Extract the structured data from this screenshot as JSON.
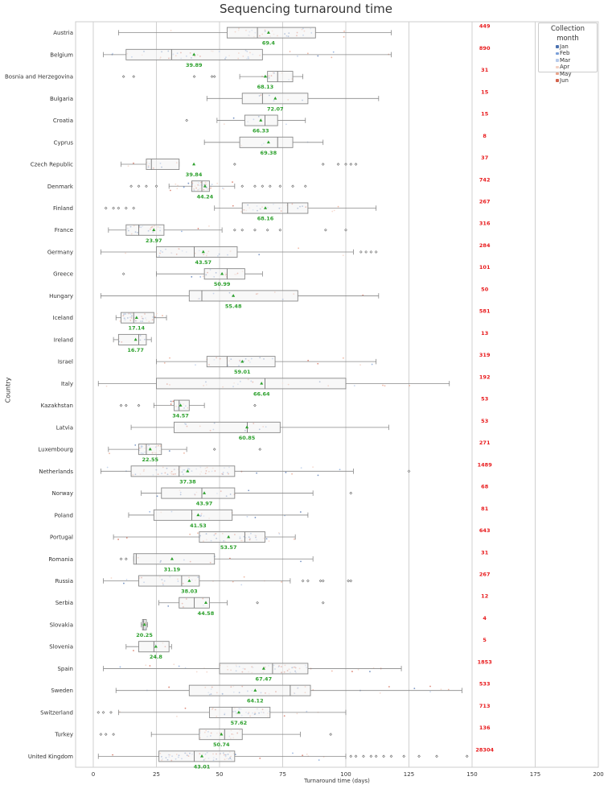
{
  "chart_data": {
    "type": "box",
    "title": "Sequencing turnaround time",
    "xlabel": "Turnaround time (days)",
    "ylabel": "Country",
    "xlim": [
      -7,
      200
    ],
    "xticks": [
      0,
      25,
      50,
      75,
      100,
      125,
      150,
      175,
      200
    ],
    "grid": true,
    "legend": {
      "title": "Collection month",
      "placement": "top-right",
      "entries": [
        {
          "label": "Jan",
          "color": "#4c72b0"
        },
        {
          "label": "Feb",
          "color": "#7a9fd8"
        },
        {
          "label": "Mar",
          "color": "#b6c9ea"
        },
        {
          "label": "Apr",
          "color": "#f3d0c2"
        },
        {
          "label": "May",
          "color": "#e9a38a"
        },
        {
          "label": "Jun",
          "color": "#d2624c"
        }
      ]
    },
    "mean_color": "#2ca02c",
    "count_color": "#e8191b",
    "countries": [
      {
        "name": "Austria",
        "q1": 53,
        "median": 65,
        "q3": 88,
        "whisker_low": 10,
        "whisker_high": 118,
        "mean": 69.4,
        "mean_label": "69.4",
        "count": "449",
        "outliers": []
      },
      {
        "name": "Belgium",
        "q1": 13,
        "median": 31,
        "q3": 67,
        "whisker_low": 4,
        "whisker_high": 118,
        "mean": 39.89,
        "mean_label": "39.89",
        "count": "890",
        "outliers": []
      },
      {
        "name": "Bosnia and Herzegovina",
        "q1": 69,
        "median": 73,
        "q3": 79,
        "whisker_low": 58,
        "whisker_high": 83,
        "mean": 68.13,
        "mean_label": "68.13",
        "count": "31",
        "outliers": [
          12,
          16,
          40,
          47,
          48
        ]
      },
      {
        "name": "Bulgaria",
        "q1": 59,
        "median": 67,
        "q3": 85,
        "whisker_low": 45,
        "whisker_high": 113,
        "mean": 72.07,
        "mean_label": "72.07",
        "count": "15",
        "outliers": []
      },
      {
        "name": "Croatia",
        "q1": 60,
        "median": 68,
        "q3": 73,
        "whisker_low": 49,
        "whisker_high": 84,
        "mean": 66.33,
        "mean_label": "66.33",
        "count": "15",
        "outliers": [
          37
        ]
      },
      {
        "name": "Cyprus",
        "q1": 58,
        "median": 73,
        "q3": 79,
        "whisker_low": 44,
        "whisker_high": 91,
        "mean": 69.38,
        "mean_label": "69.38",
        "count": "8",
        "outliers": []
      },
      {
        "name": "Czech Republic",
        "q1": 21,
        "median": 23,
        "q3": 34,
        "whisker_low": 11,
        "whisker_high": 34,
        "mean": 39.84,
        "mean_label": "39.84",
        "count": "37",
        "outliers": [
          56,
          91,
          97,
          100,
          102,
          104
        ]
      },
      {
        "name": "Denmark",
        "q1": 39,
        "median": 43,
        "q3": 46,
        "whisker_low": 30,
        "whisker_high": 56,
        "mean": 44.24,
        "mean_label": "44.24",
        "count": "742",
        "outliers": [
          15,
          18,
          21,
          25,
          59,
          64,
          67,
          70,
          74,
          79,
          84
        ]
      },
      {
        "name": "Finland",
        "q1": 59,
        "median": 77,
        "q3": 85,
        "whisker_low": 48,
        "whisker_high": 112,
        "mean": 68.16,
        "mean_label": "68.16",
        "count": "267",
        "outliers": [
          5,
          8,
          10,
          13,
          16
        ]
      },
      {
        "name": "France",
        "q1": 13,
        "median": 18,
        "q3": 28,
        "whisker_low": 6,
        "whisker_high": 51,
        "mean": 23.97,
        "mean_label": "23.97",
        "count": "316",
        "outliers": [
          56,
          59,
          64,
          69,
          74,
          92,
          100
        ]
      },
      {
        "name": "Germany",
        "q1": 25,
        "median": 40,
        "q3": 57,
        "whisker_low": 3,
        "whisker_high": 103,
        "mean": 43.57,
        "mean_label": "43.57",
        "count": "284",
        "outliers": [
          106,
          108,
          110,
          112
        ]
      },
      {
        "name": "Greece",
        "q1": 44,
        "median": 53,
        "q3": 60,
        "whisker_low": 25,
        "whisker_high": 67,
        "mean": 50.99,
        "mean_label": "50.99",
        "count": "101",
        "outliers": [
          12
        ]
      },
      {
        "name": "Hungary",
        "q1": 38,
        "median": 43,
        "q3": 81,
        "whisker_low": 3,
        "whisker_high": 113,
        "mean": 55.48,
        "mean_label": "55.48",
        "count": "50",
        "outliers": []
      },
      {
        "name": "Iceland",
        "q1": 11,
        "median": 16,
        "q3": 24,
        "whisker_low": 9,
        "whisker_high": 29,
        "mean": 17.14,
        "mean_label": "17.14",
        "count": "581",
        "outliers": []
      },
      {
        "name": "Ireland",
        "q1": 10,
        "median": 18,
        "q3": 21,
        "whisker_low": 8,
        "whisker_high": 23,
        "mean": 16.77,
        "mean_label": "16.77",
        "count": "13",
        "outliers": []
      },
      {
        "name": "Israel",
        "q1": 45,
        "median": 53,
        "q3": 72,
        "whisker_low": 25,
        "whisker_high": 112,
        "mean": 59.01,
        "mean_label": "59.01",
        "count": "319",
        "outliers": []
      },
      {
        "name": "Italy",
        "q1": 25,
        "median": 68,
        "q3": 100,
        "whisker_low": 2,
        "whisker_high": 141,
        "mean": 66.64,
        "mean_label": "66.64",
        "count": "192",
        "outliers": []
      },
      {
        "name": "Kazakhstan",
        "q1": 32,
        "median": 34,
        "q3": 38,
        "whisker_low": 24,
        "whisker_high": 44,
        "mean": 34.57,
        "mean_label": "34.57",
        "count": "53",
        "outliers": [
          11,
          13,
          18,
          64
        ]
      },
      {
        "name": "Latvia",
        "q1": 32,
        "median": 61,
        "q3": 74,
        "whisker_low": 15,
        "whisker_high": 117,
        "mean": 60.85,
        "mean_label": "60.85",
        "count": "53",
        "outliers": []
      },
      {
        "name": "Luxembourg",
        "q1": 18,
        "median": 21,
        "q3": 27,
        "whisker_low": 6,
        "whisker_high": 37,
        "mean": 22.55,
        "mean_label": "22.55",
        "count": "271",
        "outliers": [
          48,
          66
        ]
      },
      {
        "name": "Netherlands",
        "q1": 15,
        "median": 34,
        "q3": 56,
        "whisker_low": 3,
        "whisker_high": 103,
        "mean": 37.38,
        "mean_label": "37.38",
        "count": "1489",
        "outliers": [
          125
        ]
      },
      {
        "name": "Norway",
        "q1": 27,
        "median": 43,
        "q3": 56,
        "whisker_low": 19,
        "whisker_high": 87,
        "mean": 43.97,
        "mean_label": "43.97",
        "count": "68",
        "outliers": [
          102
        ]
      },
      {
        "name": "Poland",
        "q1": 24,
        "median": 39,
        "q3": 55,
        "whisker_low": 14,
        "whisker_high": 85,
        "mean": 41.53,
        "mean_label": "41.53",
        "count": "81",
        "outliers": []
      },
      {
        "name": "Portugal",
        "q1": 42,
        "median": 60,
        "q3": 68,
        "whisker_low": 8,
        "whisker_high": 80,
        "mean": 53.57,
        "mean_label": "53.57",
        "count": "643",
        "outliers": []
      },
      {
        "name": "Romania",
        "q1": 16,
        "median": 17,
        "q3": 48,
        "whisker_low": 16,
        "whisker_high": 87,
        "mean": 31.19,
        "mean_label": "31.19",
        "count": "31",
        "outliers": [
          11,
          13
        ]
      },
      {
        "name": "Russia",
        "q1": 18,
        "median": 35,
        "q3": 42,
        "whisker_low": 4,
        "whisker_high": 78,
        "mean": 38.03,
        "mean_label": "38.03",
        "count": "267",
        "outliers": [
          83,
          85,
          90,
          91,
          101,
          102
        ]
      },
      {
        "name": "Serbia",
        "q1": 34,
        "median": 40,
        "q3": 46,
        "whisker_low": 26,
        "whisker_high": 53,
        "mean": 44.58,
        "mean_label": "44.58",
        "count": "12",
        "outliers": [
          65,
          91
        ]
      },
      {
        "name": "Slovakia",
        "q1": 19.5,
        "median": 20,
        "q3": 21,
        "whisker_low": 19,
        "whisker_high": 21.5,
        "mean": 20.25,
        "mean_label": "20.25",
        "count": "4",
        "outliers": []
      },
      {
        "name": "Slovenia",
        "q1": 18,
        "median": 24,
        "q3": 30,
        "whisker_low": 13,
        "whisker_high": 31,
        "mean": 24.8,
        "mean_label": "24.8",
        "count": "5",
        "outliers": []
      },
      {
        "name": "Spain",
        "q1": 50,
        "median": 71,
        "q3": 85,
        "whisker_low": 4,
        "whisker_high": 122,
        "mean": 67.47,
        "mean_label": "67.47",
        "count": "1853",
        "outliers": []
      },
      {
        "name": "Sweden",
        "q1": 38,
        "median": 78,
        "q3": 86,
        "whisker_low": 9,
        "whisker_high": 146,
        "mean": 64.12,
        "mean_label": "64.12",
        "count": "533",
        "outliers": []
      },
      {
        "name": "Switzerland",
        "q1": 46,
        "median": 55,
        "q3": 70,
        "whisker_low": 10,
        "whisker_high": 100,
        "mean": 57.62,
        "mean_label": "57.62",
        "count": "713",
        "outliers": [
          2,
          4,
          7
        ]
      },
      {
        "name": "Turkey",
        "q1": 42,
        "median": 52,
        "q3": 59,
        "whisker_low": 23,
        "whisker_high": 82,
        "mean": 50.74,
        "mean_label": "50.74",
        "count": "136",
        "outliers": [
          3,
          5,
          8,
          94
        ]
      },
      {
        "name": "United Kingdom",
        "q1": 26,
        "median": 40,
        "q3": 56,
        "whisker_low": 2,
        "whisker_high": 100,
        "mean": 43.01,
        "mean_label": "43.01",
        "count": "28304",
        "outliers": [
          102,
          104,
          107,
          110,
          112,
          115,
          118,
          123,
          129,
          136,
          148
        ]
      }
    ]
  }
}
